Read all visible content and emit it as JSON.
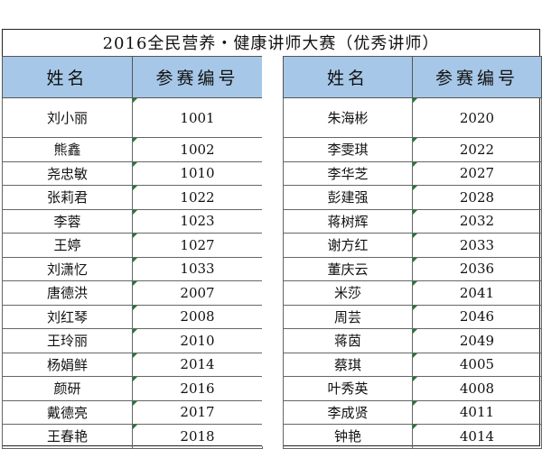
{
  "title": "2016全民营养・健康讲师大赛（优秀讲师）",
  "headers": {
    "name": "姓名",
    "number": "参赛编号"
  },
  "left": [
    {
      "name": "刘小丽",
      "number": "1001"
    },
    {
      "name": "熊鑫",
      "number": "1002"
    },
    {
      "name": "尧忠敏",
      "number": "1010"
    },
    {
      "name": "张莉君",
      "number": "1022"
    },
    {
      "name": "李蓉",
      "number": "1023"
    },
    {
      "name": "王婷",
      "number": "1027"
    },
    {
      "name": "刘潇忆",
      "number": "1033"
    },
    {
      "name": "唐德洪",
      "number": "2007"
    },
    {
      "name": "刘红琴",
      "number": "2008"
    },
    {
      "name": "王玲丽",
      "number": "2010"
    },
    {
      "name": "杨娟鲜",
      "number": "2014"
    },
    {
      "name": "颜研",
      "number": "2016"
    },
    {
      "name": "戴德亮",
      "number": "2017"
    },
    {
      "name": "王春艳",
      "number": "2018"
    }
  ],
  "right": [
    {
      "name": "朱海彬",
      "number": "2020"
    },
    {
      "name": "李雯琪",
      "number": "2022"
    },
    {
      "name": "李华芝",
      "number": "2027"
    },
    {
      "name": "彭建强",
      "number": "2028"
    },
    {
      "name": "蒋树辉",
      "number": "2032"
    },
    {
      "name": "谢方红",
      "number": "2033"
    },
    {
      "name": "董庆云",
      "number": "2036"
    },
    {
      "name": "米莎",
      "number": "2041"
    },
    {
      "name": "周芸",
      "number": "2046"
    },
    {
      "name": "蒋茵",
      "number": "2049"
    },
    {
      "name": "蔡琪",
      "number": "4005"
    },
    {
      "name": "叶秀英",
      "number": "4008"
    },
    {
      "name": "李成贤",
      "number": "4011"
    },
    {
      "name": "钟艳",
      "number": "4014"
    }
  ]
}
